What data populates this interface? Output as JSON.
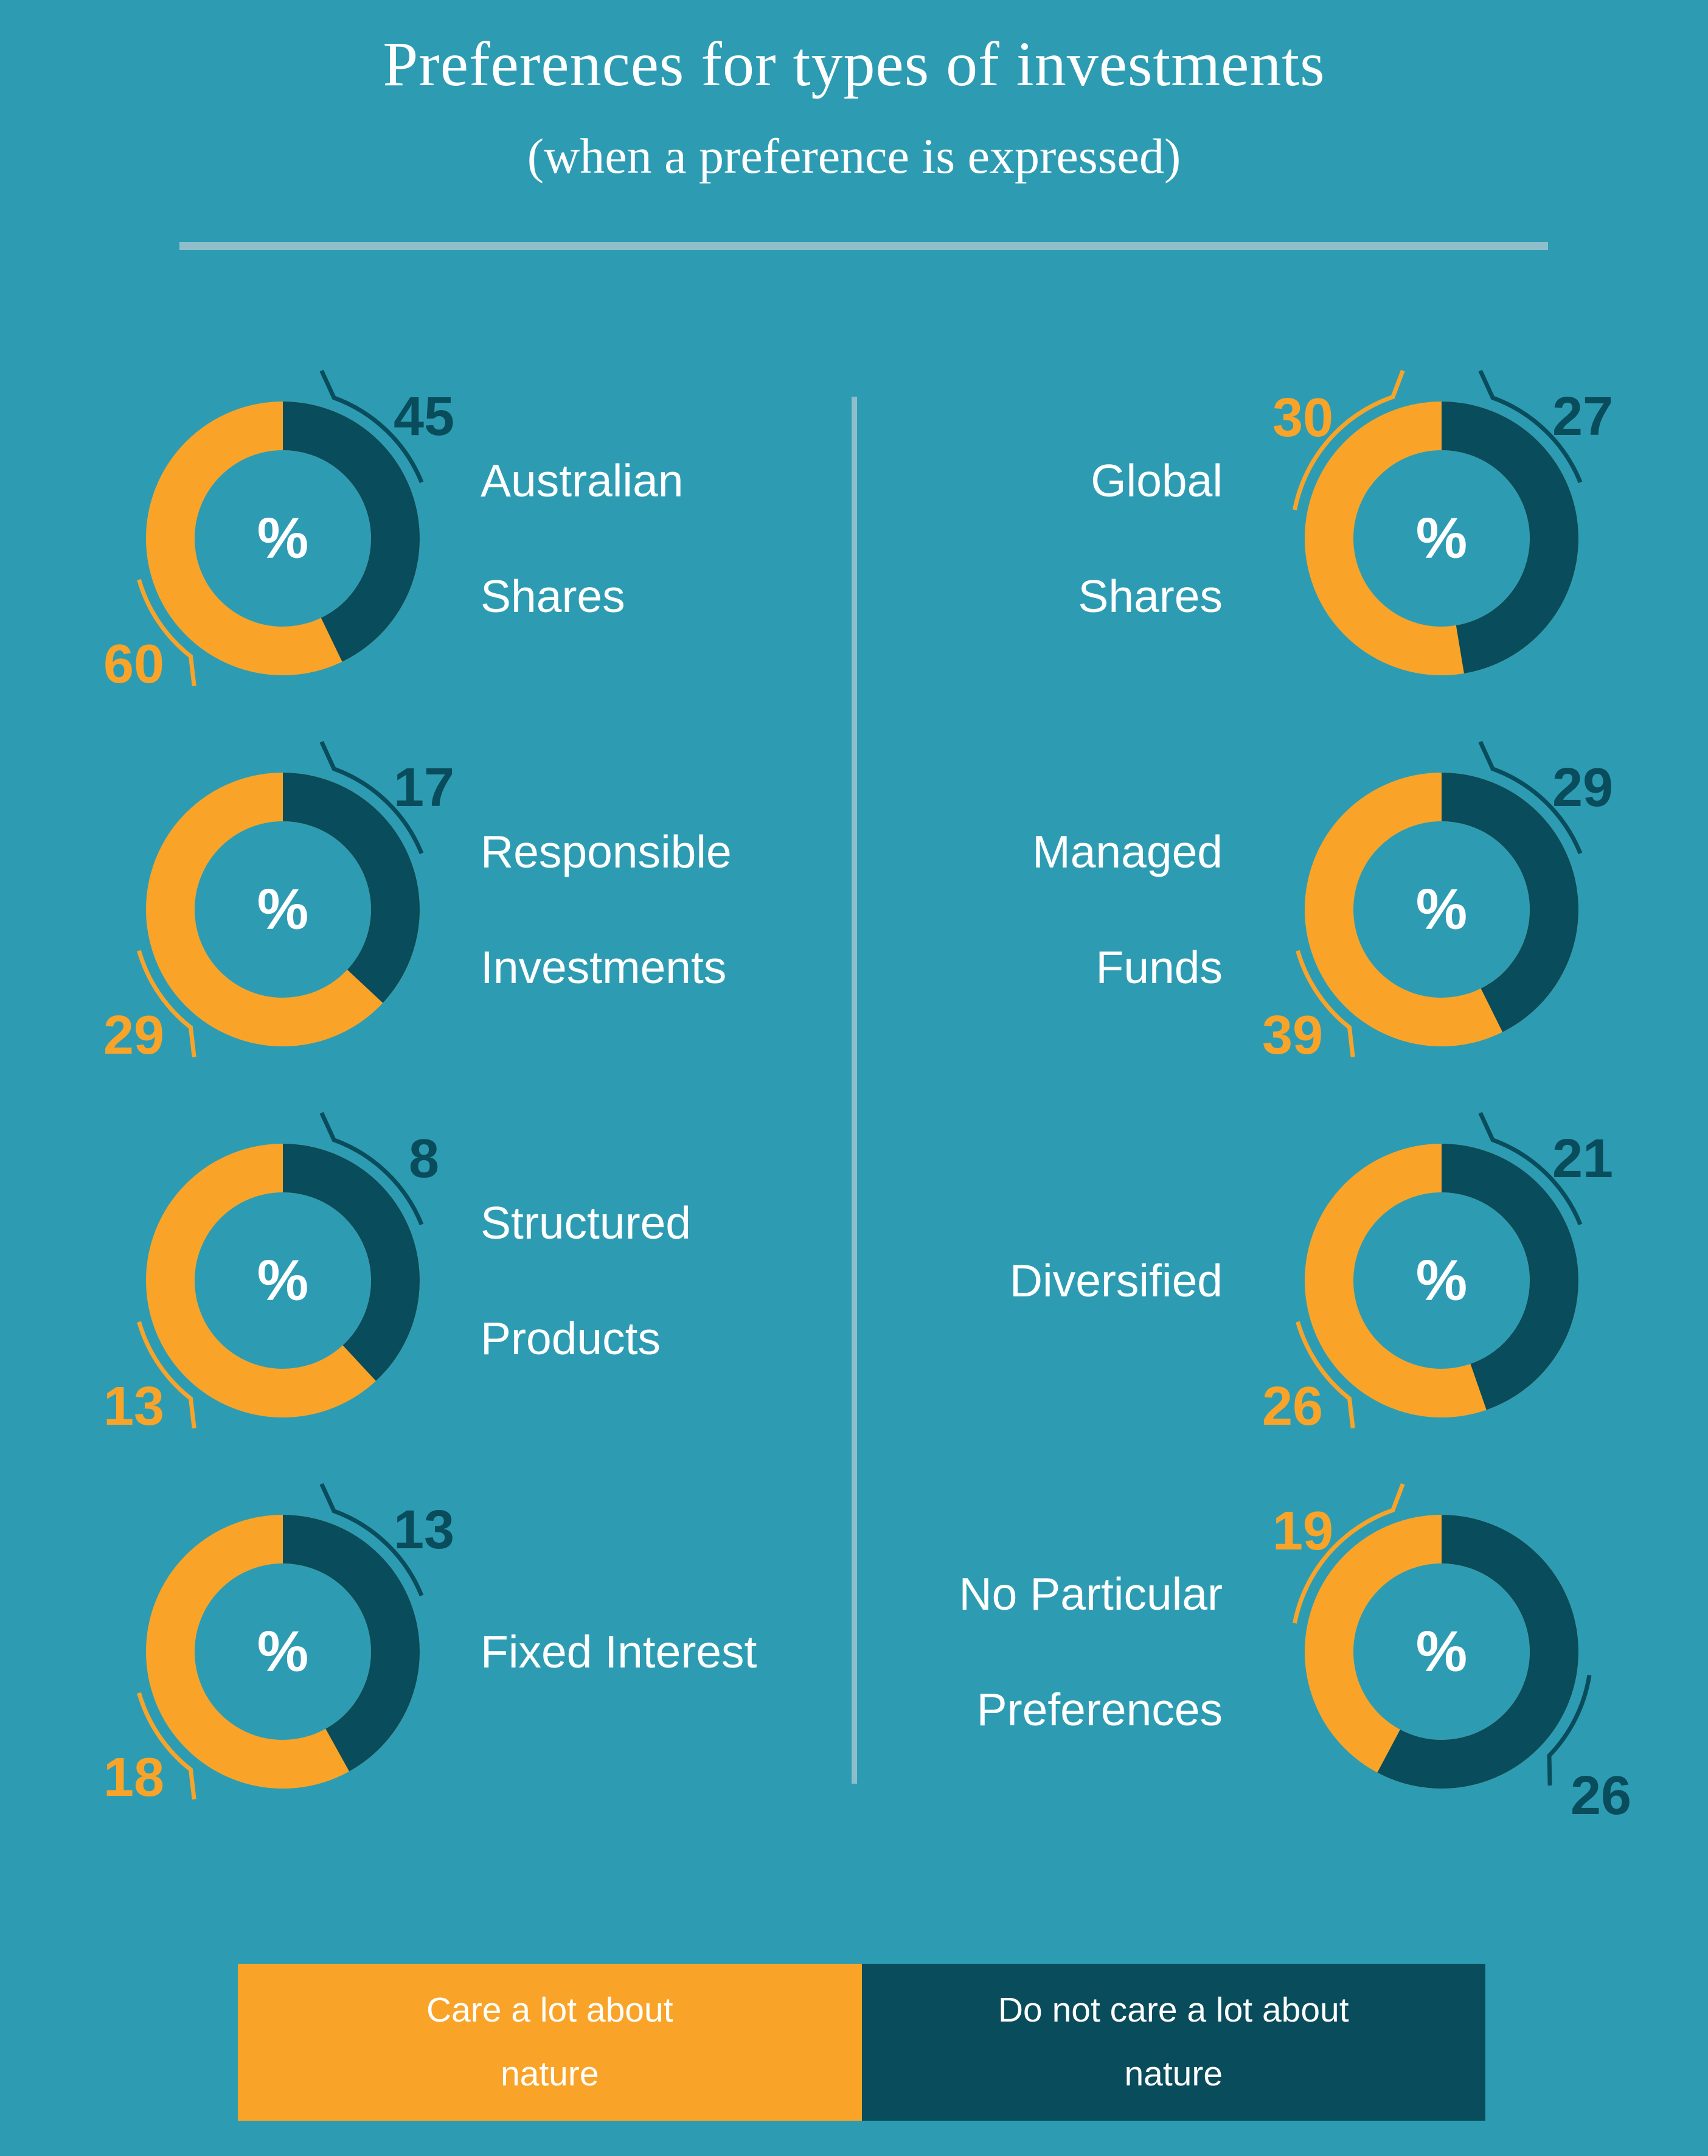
{
  "title": "Preferences for types of investments",
  "subtitle": "(when a preference is expressed)",
  "percent_symbol": "%",
  "colors": {
    "background": "#2D9CB3",
    "care_orange": "#F9A428",
    "not_care_dark": "#094C5B",
    "divider_line": "#8FBECB",
    "text": "#FFFFFF"
  },
  "legend": {
    "items": [
      {
        "label": "Care a lot about nature",
        "lines": [
          "Care a lot about",
          "nature"
        ],
        "color": "#F9A428"
      },
      {
        "label": "Do not care a lot about nature",
        "lines": [
          "Do not care a lot about",
          "nature"
        ],
        "color": "#094C5B"
      }
    ]
  },
  "chart_data": {
    "type": "pie",
    "subtype": "donut-grid",
    "center_symbol": "%",
    "legend": [
      "Care a lot about nature",
      "Do not care a lot about nature"
    ],
    "series_colors": {
      "care": "#F9A428",
      "not_care": "#094C5B"
    },
    "charts": [
      {
        "label": "Australian Shares",
        "label_lines": [
          "Australian",
          "Shares"
        ],
        "care": 60,
        "not_care": 45
      },
      {
        "label": "Global Shares",
        "label_lines": [
          "Global",
          "Shares"
        ],
        "care": 30,
        "not_care": 27
      },
      {
        "label": "Responsible Investments",
        "label_lines": [
          "Responsible",
          "Investments"
        ],
        "care": 29,
        "not_care": 17
      },
      {
        "label": "Managed Funds",
        "label_lines": [
          "Managed",
          "Funds"
        ],
        "care": 39,
        "not_care": 29
      },
      {
        "label": "Structured Products",
        "label_lines": [
          "Structured",
          "Products"
        ],
        "care": 13,
        "not_care": 8
      },
      {
        "label": "Diversified",
        "label_lines": [
          "Diversified"
        ],
        "care": 26,
        "not_care": 21
      },
      {
        "label": "Fixed Interest",
        "label_lines": [
          "Fixed Interest"
        ],
        "care": 18,
        "not_care": 13
      },
      {
        "label": "No Particular Preferences",
        "label_lines": [
          "No Particular",
          "Preferences"
        ],
        "care": 19,
        "not_care": 26
      }
    ]
  }
}
